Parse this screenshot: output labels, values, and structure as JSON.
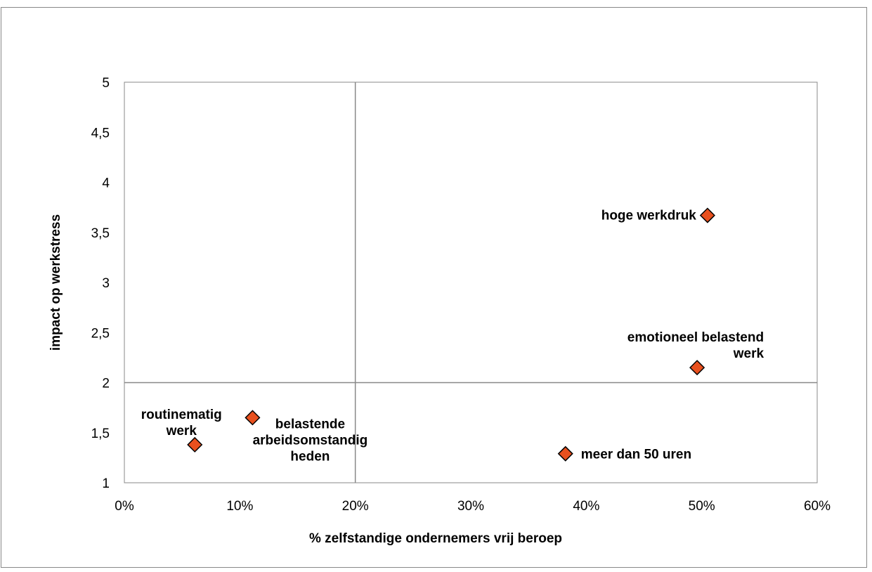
{
  "chart_data": {
    "type": "scatter",
    "title": "",
    "xlabel": "% zelfstandige ondernemers vrij beroep",
    "ylabel": "impact op werkstress",
    "xlim": [
      0,
      60
    ],
    "ylim": [
      1,
      5
    ],
    "x_ticks": [
      "0%",
      "10%",
      "20%",
      "30%",
      "40%",
      "50%",
      "60%"
    ],
    "y_ticks": [
      "1",
      "1,5",
      "2",
      "2,5",
      "3",
      "3,5",
      "4",
      "4,5",
      "5"
    ],
    "grid": false,
    "reference_lines": {
      "x": 20,
      "y": 2
    },
    "marker": {
      "shape": "diamond",
      "fill": "#e8501e",
      "stroke": "#000000"
    },
    "points": [
      {
        "label_lines": [
          "hoge werkdruk"
        ],
        "x": 50.5,
        "y": 3.67
      },
      {
        "label_lines": [
          "emotioneel belastend",
          "werk"
        ],
        "x": 49.6,
        "y": 2.15
      },
      {
        "label_lines": [
          "meer dan 50 uren"
        ],
        "x": 38.2,
        "y": 1.29
      },
      {
        "label_lines": [
          "routinematig",
          "werk"
        ],
        "x": 6.1,
        "y": 1.38
      },
      {
        "label_lines": [
          "belastende",
          "arbeidsomstandig",
          "heden"
        ],
        "x": 11.1,
        "y": 1.65
      }
    ]
  }
}
